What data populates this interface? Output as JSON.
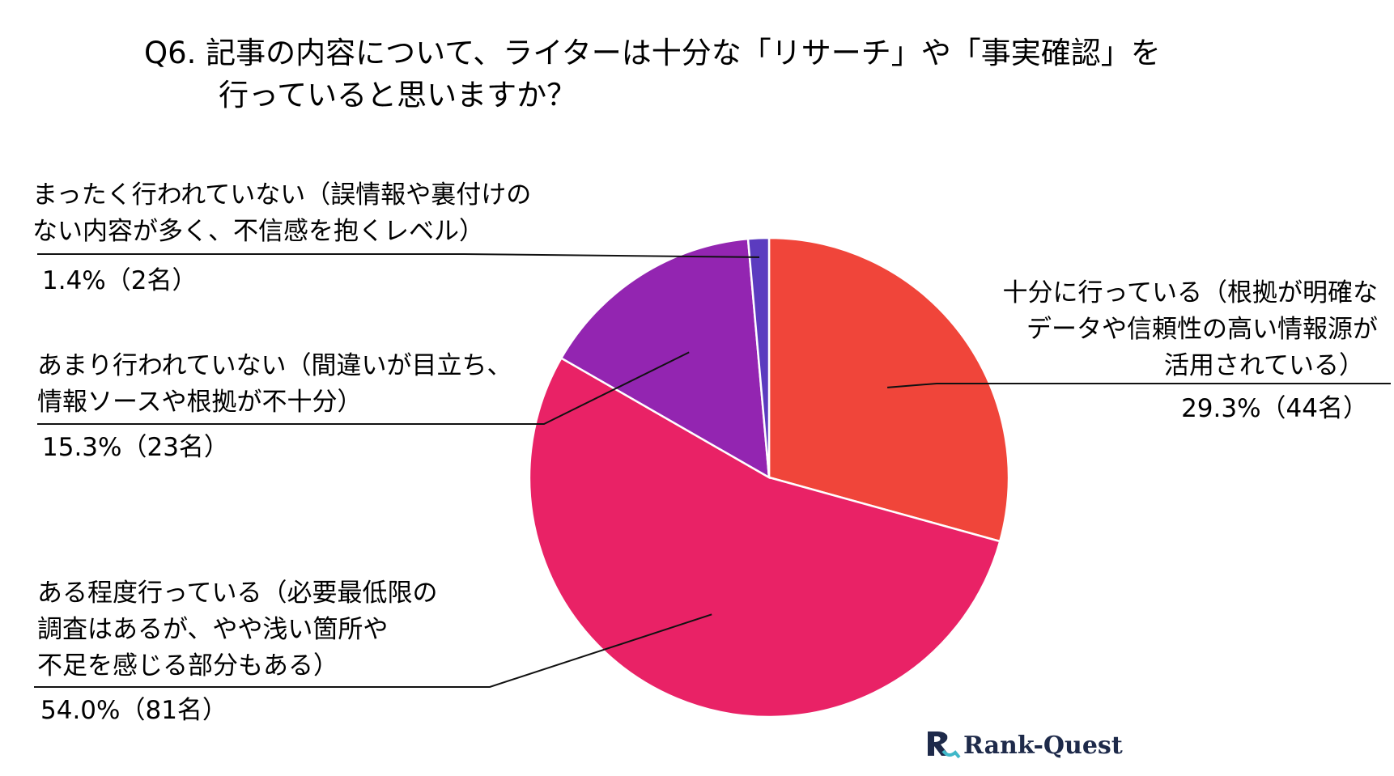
{
  "chart_data": {
    "type": "pie",
    "title": [
      "Q6. 記事の内容について、ライターは十分な「リサーチ」や「事実確認」を",
      "行っていると思いますか？"
    ],
    "slices": [
      {
        "label_lines": [
          "十分に行っている（根拠が明確な",
          "データや信頼性の高い情報源が",
          "活用されている）"
        ],
        "percent_text": "29.3%（44名）",
        "percent": 29.3,
        "count": 44,
        "color": "#F0453A"
      },
      {
        "label_lines": [
          "ある程度行っている（必要最低限の",
          "調査はあるが、やや浅い箇所や",
          "不足を感じる部分もある）"
        ],
        "percent_text": "54.0%（81名）",
        "percent": 54.0,
        "count": 81,
        "color": "#E92266"
      },
      {
        "label_lines": [
          "あまり行われていない（間違いが目立ち、",
          "情報ソースや根拠が不十分）"
        ],
        "percent_text": "15.3%（23名）",
        "percent": 15.3,
        "count": 23,
        "color": "#9325B1"
      },
      {
        "label_lines": [
          "まったく行われていない（誤情報や裏付けの",
          "ない内容が多く、不信感を抱くレベル）"
        ],
        "percent_text": "1.4%（2名）",
        "percent": 1.4,
        "count": 2,
        "color": "#5B3BBF"
      }
    ],
    "start_angle": "12 o'clock",
    "direction": "clockwise"
  },
  "logo": {
    "text": "Rank-Quest",
    "icon": "rank-quest-logo-icon",
    "colors": {
      "text": "#1E2A4A",
      "accent": "#3FB8C9"
    }
  }
}
